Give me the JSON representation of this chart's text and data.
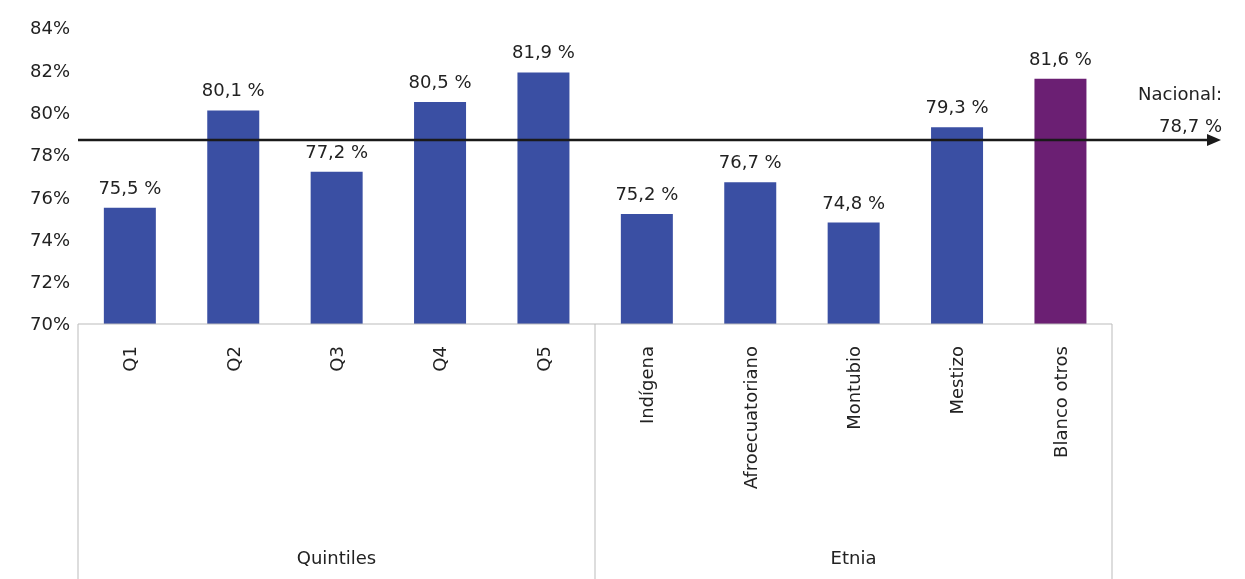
{
  "chart_data": {
    "type": "bar",
    "categories": [
      "Q1",
      "Q2",
      "Q3",
      "Q4",
      "Q5",
      "Indígena",
      "Afroecuatoriano",
      "Montubio",
      "Mestizo",
      "Blanco otros"
    ],
    "values": [
      75.5,
      80.1,
      77.2,
      80.5,
      81.9,
      75.2,
      76.7,
      74.8,
      79.3,
      81.6
    ],
    "colors": [
      "#3a4fa3",
      "#3a4fa3",
      "#3a4fa3",
      "#3a4fa3",
      "#3a4fa3",
      "#3a4fa3",
      "#3a4fa3",
      "#3a4fa3",
      "#3a4fa3",
      "#6b1f73"
    ],
    "value_labels": [
      "75,5 %",
      "80,1 %",
      "77,2 %",
      "80,5 %",
      "81,9 %",
      "75,2 %",
      "76,7 %",
      "74,8 %",
      "79,3 %",
      "81,6 %"
    ],
    "ylim": [
      70,
      84
    ],
    "yticks": [
      {
        "value": 70,
        "label": "70%"
      },
      {
        "value": 72,
        "label": "72%"
      },
      {
        "value": 74,
        "label": "74%"
      },
      {
        "value": 76,
        "label": "76%"
      },
      {
        "value": 78,
        "label": "78%"
      },
      {
        "value": 80,
        "label": "80%"
      },
      {
        "value": 82,
        "label": "82%"
      },
      {
        "value": 84,
        "label": "84%"
      }
    ],
    "ref_lines": [
      {
        "axis": "y",
        "value": 78.7,
        "label": "Nacional: 78,7 %",
        "color": "#1a1a1a"
      }
    ],
    "annotations": [
      "Quintiles",
      "Etnia"
    ],
    "grid": false,
    "legend": false
  }
}
